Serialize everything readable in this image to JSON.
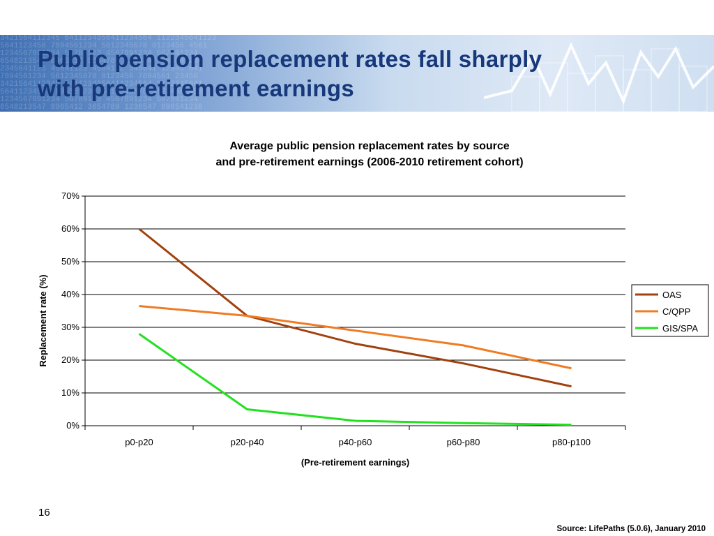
{
  "slide": {
    "title_line1": "Public pension replacement rates fall sharply",
    "title_line2": "with pre-retirement earnings",
    "page_number": "16",
    "source": "Source:  LifePaths  (5.0.6), January 2010"
  },
  "colors": {
    "title": "#17387a",
    "OAS": "#a0420f",
    "C/QPP": "#f07b23",
    "GIS/SPA": "#22e11e"
  },
  "chart_data": {
    "type": "line",
    "title_line1": "Average public pension replacement rates by source",
    "title_line2": "and pre-retirement earnings (2006-2010 retirement cohort)",
    "xlabel": "(Pre-retirement earnings)",
    "ylabel": "Replacement rate (%)",
    "categories": [
      "p0-p20",
      "p20-p40",
      "p40-p60",
      "p60-p80",
      "p80-p100"
    ],
    "ylim": [
      0,
      70
    ],
    "yticks": [
      0,
      10,
      20,
      30,
      40,
      50,
      60,
      70
    ],
    "ytick_labels": [
      "0%",
      "10%",
      "20%",
      "30%",
      "40%",
      "50%",
      "60%",
      "70%"
    ],
    "grid": true,
    "legend": "right",
    "series": [
      {
        "name": "OAS",
        "values": [
          60,
          33.5,
          25,
          19,
          12
        ]
      },
      {
        "name": "C/QPP",
        "values": [
          36.5,
          33.5,
          29,
          24.5,
          17.5
        ]
      },
      {
        "name": "GIS/SPA",
        "values": [
          28,
          5,
          1.5,
          0.8,
          0.3
        ]
      }
    ]
  }
}
